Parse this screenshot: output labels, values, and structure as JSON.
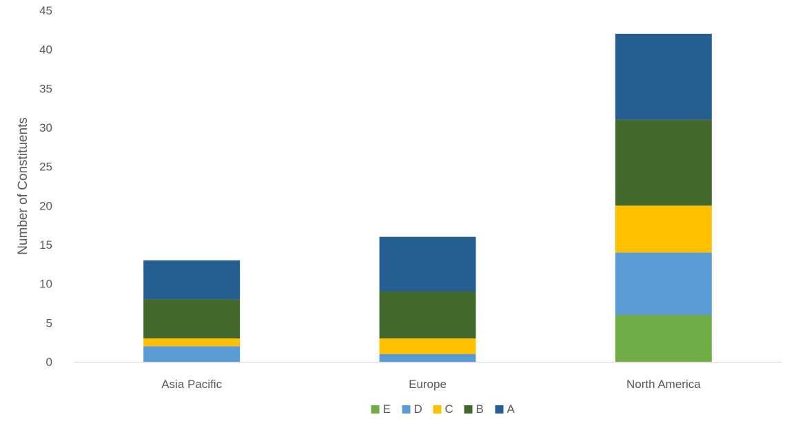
{
  "chart_data": {
    "type": "bar",
    "stacked": true,
    "title": "",
    "xlabel": "",
    "ylabel": "Number of Constituents",
    "categories": [
      "Asia Pacific",
      "Europe",
      "North America"
    ],
    "series": [
      {
        "name": "E",
        "color": "#70ad47",
        "values": [
          0,
          0,
          6
        ]
      },
      {
        "name": "D",
        "color": "#5b9bd5",
        "values": [
          2,
          1,
          8
        ]
      },
      {
        "name": "C",
        "color": "#ffc000",
        "values": [
          1,
          2,
          6
        ]
      },
      {
        "name": "B",
        "color": "#43682b",
        "values": [
          5,
          6,
          11
        ]
      },
      {
        "name": "A",
        "color": "#255e91",
        "values": [
          5,
          7,
          11
        ]
      }
    ],
    "ylim": [
      0,
      45
    ],
    "yticks": [
      0,
      5,
      10,
      15,
      20,
      25,
      30,
      35,
      40,
      45
    ],
    "grid": false,
    "legend_position": "bottom"
  }
}
